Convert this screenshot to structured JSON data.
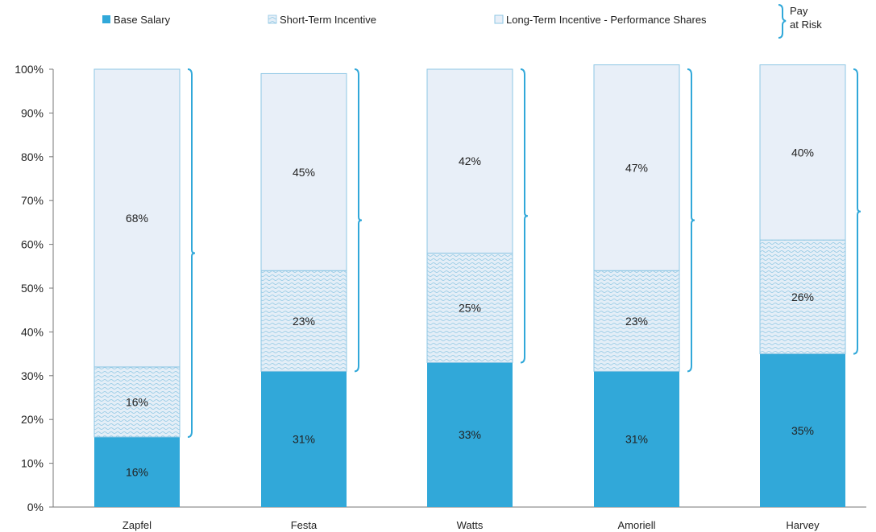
{
  "colors": {
    "base": "#31a8d9",
    "sti": "#e4eef7",
    "sti_hatch": "#8ec7e4",
    "lti": "#e8eff8",
    "outline": "#8ec7e4",
    "bracket": "#31a8d9",
    "axis": "#777777"
  },
  "legend": {
    "items": [
      {
        "label": "Base Salary",
        "swatch": "solid"
      },
      {
        "label": "Short-Term Incentive",
        "swatch": "hatch"
      },
      {
        "label": "Long-Term Incentive - Performance Shares",
        "swatch": "light"
      }
    ],
    "bracket_line1": "Pay",
    "bracket_line2": "at Risk"
  },
  "chart_data": {
    "type": "bar",
    "stacked": true,
    "categories": [
      "Zapfel",
      "Festa",
      "Watts",
      "Amoriell",
      "Harvey"
    ],
    "series": [
      {
        "name": "Base Salary",
        "values": [
          16,
          31,
          33,
          31,
          35
        ],
        "labels": [
          "16%",
          "31%",
          "33%",
          "31%",
          "35%"
        ]
      },
      {
        "name": "Short-Term Incentive",
        "values": [
          16,
          23,
          25,
          23,
          26
        ],
        "labels": [
          "16%",
          "23%",
          "25%",
          "23%",
          "26%"
        ]
      },
      {
        "name": "Long-Term Incentive - Performance Shares",
        "values": [
          68,
          45,
          42,
          47,
          40
        ],
        "labels": [
          "68%",
          "45%",
          "42%",
          "47%",
          "40%"
        ]
      }
    ],
    "ylim": [
      0,
      100
    ],
    "yticks": [
      "0%",
      "10%",
      "20%",
      "30%",
      "40%",
      "50%",
      "60%",
      "70%",
      "80%",
      "90%",
      "100%"
    ],
    "grid": false,
    "legend_position": "top"
  }
}
